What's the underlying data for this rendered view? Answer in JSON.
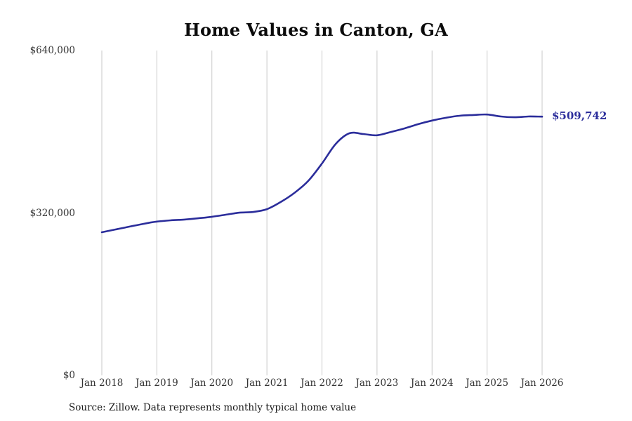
{
  "title": "Home Values in Canton, GA",
  "annotation": {
    "label": "$509,742"
  },
  "source": "Source: Zillow. Data represents monthly typical home value",
  "colors": {
    "line": "#2b2d9b",
    "annotation": "#2b2d9b",
    "grid": "#c9c9c9",
    "tick_text": "#333333"
  },
  "chart_data": {
    "type": "line",
    "title": "Home Values in Canton, GA",
    "series_name": "Typical home value",
    "x": [
      "2018-01",
      "2018-04",
      "2018-07",
      "2018-10",
      "2019-01",
      "2019-04",
      "2019-07",
      "2019-10",
      "2020-01",
      "2020-04",
      "2020-07",
      "2020-10",
      "2021-01",
      "2021-04",
      "2021-07",
      "2021-10",
      "2022-01",
      "2022-04",
      "2022-07",
      "2022-10",
      "2023-01",
      "2023-04",
      "2023-07",
      "2023-10",
      "2024-01",
      "2024-04",
      "2024-07",
      "2024-10",
      "2025-01",
      "2025-04",
      "2025-07",
      "2025-10",
      "2026-01"
    ],
    "values": [
      282000,
      287500,
      293000,
      298500,
      303000,
      305500,
      307000,
      309500,
      312500,
      316500,
      320500,
      322000,
      327500,
      341500,
      359500,
      383000,
      417500,
      456000,
      477000,
      475500,
      473000,
      479500,
      486500,
      495000,
      502000,
      507500,
      511500,
      513000,
      514000,
      510000,
      508500,
      510000,
      509742
    ],
    "final_value": 509742,
    "end_label": "$509,742",
    "x_tick_labels": [
      "Jan 2018",
      "Jan 2019",
      "Jan 2020",
      "Jan 2021",
      "Jan 2022",
      "Jan 2023",
      "Jan 2024",
      "Jan 2025",
      "Jan 2026"
    ],
    "x_tick_years": [
      2018,
      2019,
      2020,
      2021,
      2022,
      2023,
      2024,
      2025,
      2026
    ],
    "y_ticks": [
      {
        "value": 0,
        "label": "$0"
      },
      {
        "value": 320000,
        "label": "$320,000"
      },
      {
        "value": 640000,
        "label": "$640,000"
      }
    ],
    "ylim": [
      0,
      640000
    ],
    "xlim_years": [
      2018,
      2026
    ],
    "grid": "vertical-only",
    "legend": "none"
  }
}
